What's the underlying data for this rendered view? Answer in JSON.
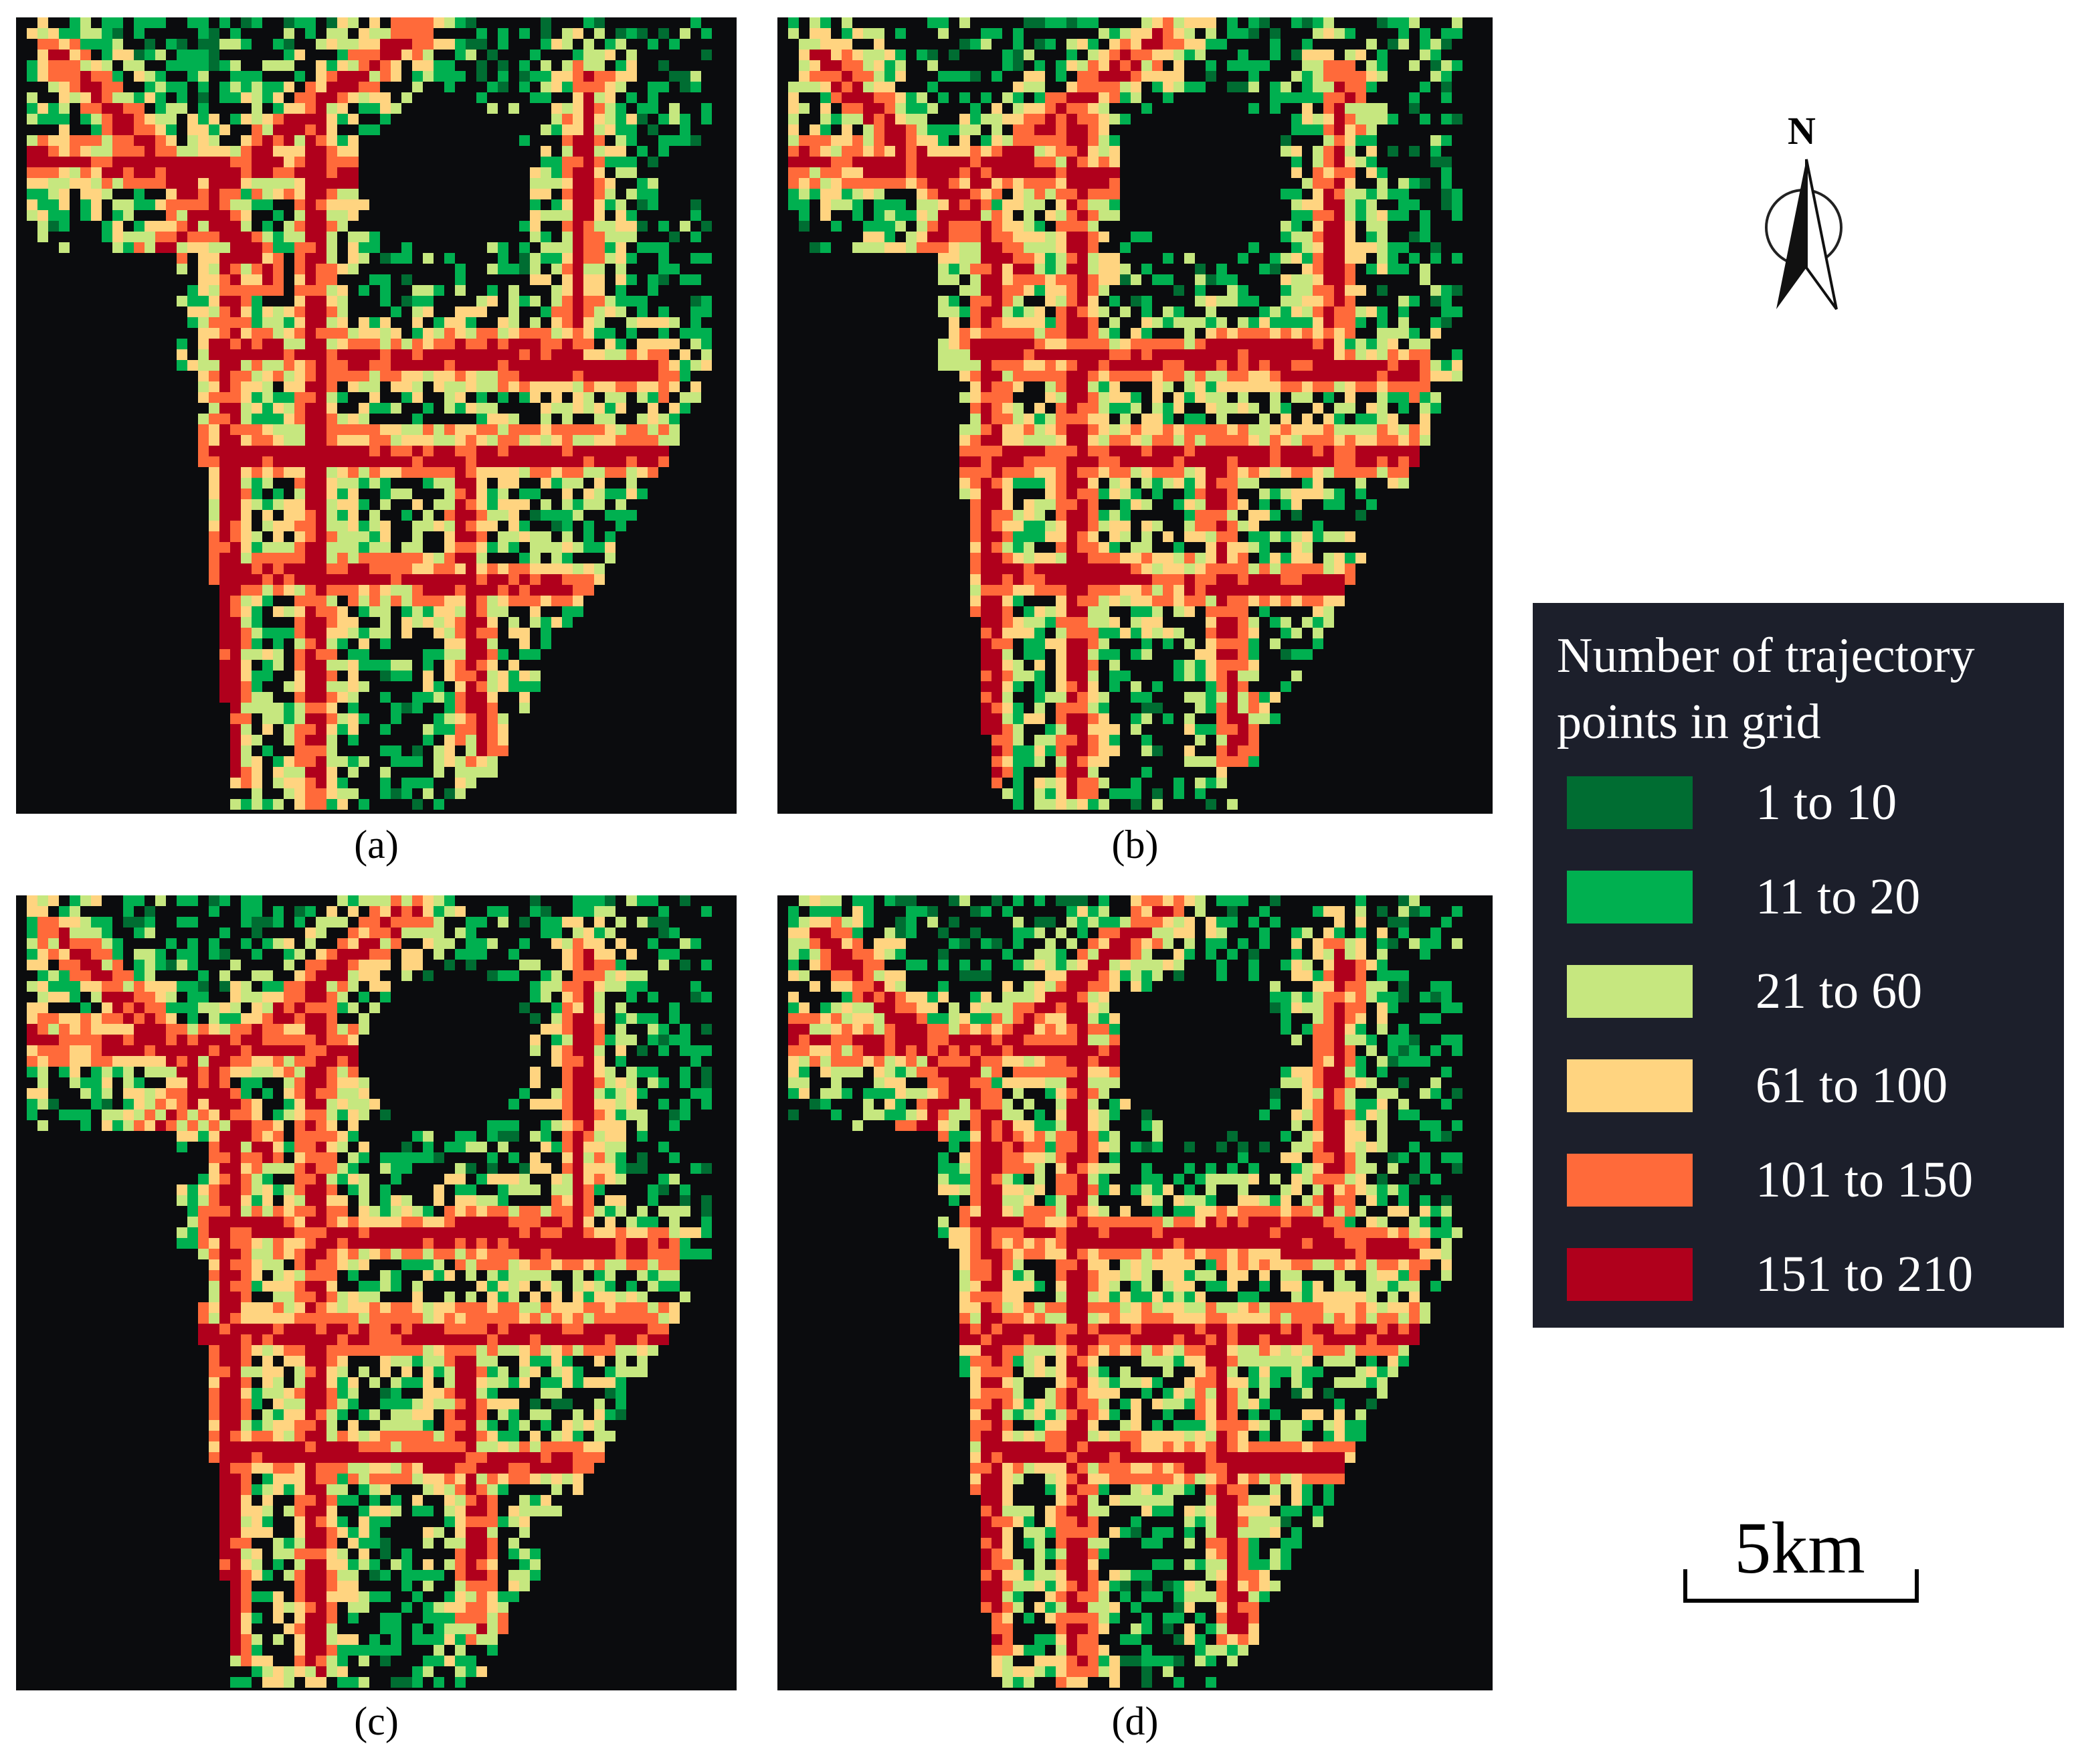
{
  "panels": [
    {
      "label": "(a)"
    },
    {
      "label": "(b)"
    },
    {
      "label": "(c)"
    },
    {
      "label": "(d)"
    }
  ],
  "north_label": "N",
  "scale_label": "5km",
  "legend": {
    "title": "Number of trajectory points in grid",
    "items": [
      {
        "label": "1 to 10",
        "color": "#006d32"
      },
      {
        "label": "11 to 20",
        "color": "#00b050"
      },
      {
        "label": "21 to 60",
        "color": "#c6e77f"
      },
      {
        "label": "61 to 100",
        "color": "#ffd480"
      },
      {
        "label": "101 to 150",
        "color": "#ff6a3a"
      },
      {
        "label": "151 to 210",
        "color": "#b0001c"
      }
    ]
  }
}
